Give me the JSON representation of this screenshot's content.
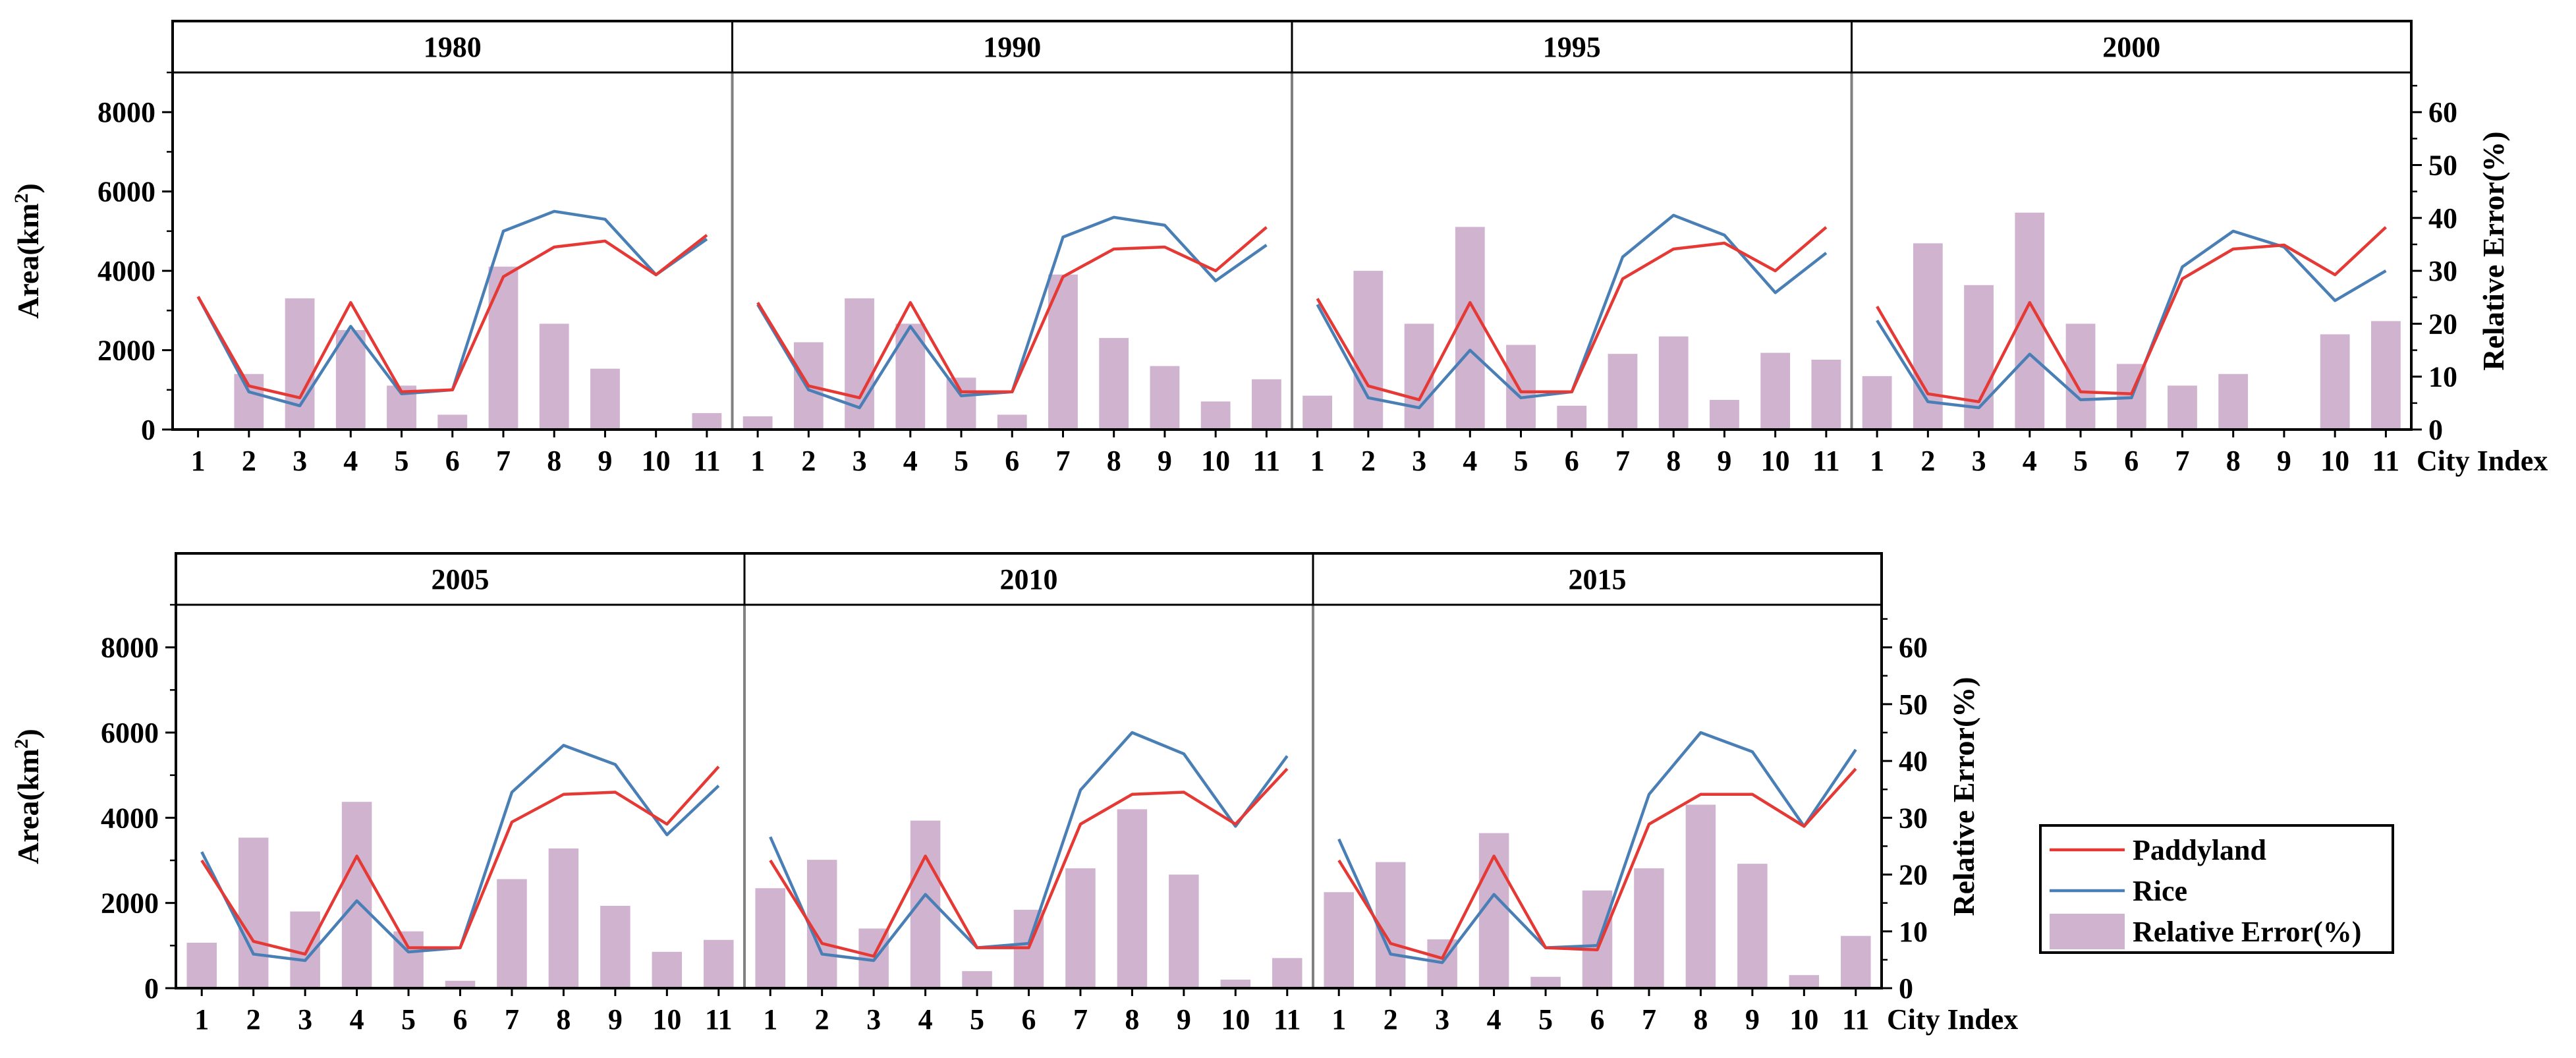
{
  "chart_data": {
    "type": "combo-bar-line",
    "categories": [
      "1",
      "2",
      "3",
      "4",
      "5",
      "6",
      "7",
      "8",
      "9",
      "10",
      "11"
    ],
    "left_axis": {
      "label_main": "Area(km",
      "label_sup": "2",
      "label_close": ")",
      "ticks": [
        "0",
        "2000",
        "4000",
        "6000",
        "8000"
      ],
      "range": [
        0,
        9000
      ]
    },
    "right_axis": {
      "label": "Relative Error(%)",
      "ticks": [
        "0",
        "10",
        "20",
        "30",
        "40",
        "50",
        "60"
      ],
      "range": [
        0,
        67.5
      ]
    },
    "xlabel": "City Index",
    "colors": {
      "paddyland": "#e53935",
      "rice": "#4a7fb5",
      "bar": "#cfb3cf"
    },
    "legend": {
      "position": "bottom-right",
      "items": [
        "Paddyland",
        "Rice",
        "Relative Error(%)"
      ]
    },
    "panels": [
      {
        "year": "1980",
        "paddyland": [
          3350,
          1100,
          800,
          3200,
          950,
          1000,
          3850,
          4600,
          4750,
          3900,
          4900
        ],
        "rice": [
          3350,
          950,
          600,
          2600,
          900,
          1000,
          5000,
          5500,
          5300,
          3900,
          4800
        ],
        "relative_error": [
          0,
          10.5,
          24.8,
          18.8,
          8.3,
          2.8,
          30.8,
          20,
          11.5,
          0,
          3.1
        ]
      },
      {
        "year": "1990",
        "paddyland": [
          3200,
          1100,
          800,
          3200,
          950,
          950,
          3850,
          4550,
          4600,
          4000,
          5100
        ],
        "rice": [
          3150,
          1000,
          550,
          2600,
          850,
          950,
          4850,
          5350,
          5150,
          3750,
          4650
        ],
        "relative_error": [
          2.5,
          16.5,
          24.8,
          20,
          9.8,
          2.8,
          29.3,
          17.3,
          12,
          5.3,
          9.5
        ]
      },
      {
        "year": "1995",
        "paddyland": [
          3300,
          1100,
          750,
          3200,
          950,
          950,
          3800,
          4550,
          4700,
          4000,
          5100
        ],
        "rice": [
          3150,
          800,
          550,
          2000,
          800,
          950,
          4350,
          5400,
          4900,
          3450,
          4450
        ],
        "relative_error": [
          6.4,
          30,
          20,
          38.3,
          16,
          4.5,
          14.3,
          17.6,
          5.6,
          14.5,
          13.2
        ]
      },
      {
        "year": "2000",
        "paddyland": [
          3100,
          900,
          700,
          3200,
          950,
          900,
          3800,
          4550,
          4650,
          3900,
          5100
        ],
        "rice": [
          2750,
          700,
          550,
          1900,
          750,
          800,
          4100,
          5000,
          4600,
          3250,
          4000
        ],
        "relative_error": [
          10.1,
          35.2,
          27.3,
          41,
          20,
          12.4,
          8.3,
          10.5,
          0,
          18,
          20.5
        ]
      },
      {
        "year": "2005",
        "paddyland": [
          3000,
          1100,
          800,
          3100,
          950,
          950,
          3900,
          4550,
          4600,
          3850,
          5200
        ],
        "rice": [
          3200,
          800,
          650,
          2050,
          850,
          950,
          4600,
          5700,
          5250,
          3600,
          4750
        ],
        "relative_error": [
          8,
          26.5,
          13.5,
          32.8,
          10,
          1.3,
          19.2,
          24.6,
          14.5,
          6.4,
          8.5
        ]
      },
      {
        "year": "2010",
        "paddyland": [
          3000,
          1050,
          750,
          3100,
          950,
          950,
          3850,
          4550,
          4600,
          3850,
          5150
        ],
        "rice": [
          3550,
          800,
          650,
          2200,
          950,
          1050,
          4650,
          6000,
          5500,
          3800,
          5450
        ],
        "relative_error": [
          17.6,
          22.6,
          10.5,
          29.5,
          3,
          13.8,
          21.1,
          31.5,
          20,
          1.5,
          5.3
        ]
      },
      {
        "year": "2015",
        "paddyland": [
          3000,
          1050,
          700,
          3100,
          950,
          900,
          3850,
          4550,
          4550,
          3800,
          5150
        ],
        "rice": [
          3500,
          800,
          600,
          2200,
          950,
          1000,
          4550,
          6000,
          5550,
          3800,
          5600
        ],
        "relative_error": [
          16.9,
          22.2,
          8.6,
          27.3,
          2,
          17.2,
          21.1,
          32.3,
          21.9,
          2.3,
          9.2
        ]
      }
    ]
  }
}
